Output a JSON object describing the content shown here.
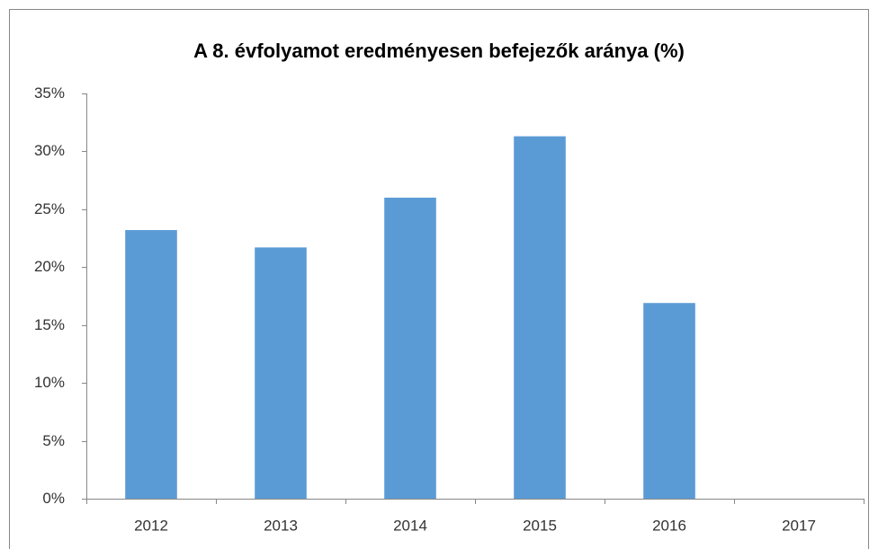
{
  "chart_data": {
    "type": "bar",
    "title": "A 8. évfolyamot eredményesen befejezők aránya (%)",
    "categories": [
      "2012",
      "2013",
      "2014",
      "2015",
      "2016",
      "2017"
    ],
    "values": [
      23.2,
      21.7,
      26.0,
      31.3,
      16.9,
      null
    ],
    "color": "#5b9bd5",
    "ylim": [
      0,
      35
    ],
    "yticks": [
      {
        "value": 0,
        "label": "0%"
      },
      {
        "value": 5,
        "label": "5%"
      },
      {
        "value": 10,
        "label": "10%"
      },
      {
        "value": 15,
        "label": "15%"
      },
      {
        "value": 20,
        "label": "20%"
      },
      {
        "value": 25,
        "label": "25%"
      },
      {
        "value": 30,
        "label": "30%"
      },
      {
        "value": 35,
        "label": "35%"
      }
    ],
    "grid": false
  }
}
